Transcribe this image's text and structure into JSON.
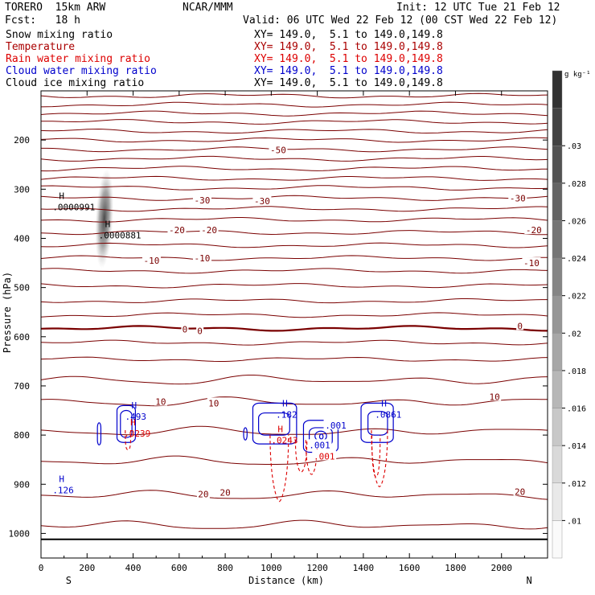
{
  "header": {
    "model": "TORERO",
    "resolution": "15km ARW",
    "org": "NCAR/MMM",
    "init": "Init: 12 UTC Tue 21 Feb 12",
    "fcst_label": "Fcst:",
    "fcst_value": "18 h",
    "valid": "Valid: 06 UTC Wed 22 Feb 12 (00 CST Wed 22 Feb 12)"
  },
  "fields": [
    {
      "name": "Snow mixing ratio",
      "xy": "XY= 149.0,  5.1 to 149.0,149.8",
      "color": "#000000"
    },
    {
      "name": "Temperature",
      "xy": "XY= 149.0,  5.1 to 149.0,149.8",
      "color": "#aa0000"
    },
    {
      "name": "Rain water mixing ratio",
      "xy": "XY= 149.0,  5.1 to 149.0,149.8",
      "color": "#dd0000"
    },
    {
      "name": "Cloud water mixing ratio",
      "xy": "XY= 149.0,  5.1 to 149.0,149.8",
      "color": "#0000cc"
    },
    {
      "name": "Cloud ice mixing ratio",
      "xy": "XY= 149.0,  5.1 to 149.0,149.8",
      "color": "#000000"
    }
  ],
  "chart_data": {
    "type": "contour",
    "xlabel": "Distance (km)",
    "ylabel": "Pressure (hPa)",
    "xlim": [
      0,
      2200
    ],
    "ylim": [
      1050,
      100
    ],
    "xticks": [
      0,
      200,
      400,
      600,
      800,
      1000,
      1200,
      1400,
      1600,
      1800,
      2000
    ],
    "yticks": [
      200,
      300,
      400,
      500,
      600,
      700,
      800,
      900,
      1000
    ],
    "x_end_labels": {
      "left": "S",
      "right": "N"
    },
    "colorbar": {
      "unit": "g kg⁻¹",
      "tick_labels": [
        ".01",
        ".012",
        ".014",
        ".016",
        ".018",
        ".02",
        ".022",
        ".024",
        ".026",
        ".028",
        ".03"
      ]
    },
    "temperature_contour_labels": [
      {
        "x": 1030,
        "p": 220,
        "text": "-50"
      },
      {
        "x": 700,
        "p": 322,
        "text": "-30"
      },
      {
        "x": 960,
        "p": 324,
        "text": "-30"
      },
      {
        "x": 2070,
        "p": 318,
        "text": "-30"
      },
      {
        "x": 590,
        "p": 383,
        "text": "-20"
      },
      {
        "x": 730,
        "p": 383,
        "text": "-20"
      },
      {
        "x": 2140,
        "p": 383,
        "text": "-20"
      },
      {
        "x": 480,
        "p": 445,
        "text": "-10"
      },
      {
        "x": 700,
        "p": 440,
        "text": "-10"
      },
      {
        "x": 2130,
        "p": 450,
        "text": "-10"
      },
      {
        "x": 625,
        "p": 585,
        "text": "0"
      },
      {
        "x": 690,
        "p": 588,
        "text": "0"
      },
      {
        "x": 2080,
        "p": 578,
        "text": "0"
      },
      {
        "x": 520,
        "p": 732,
        "text": "10"
      },
      {
        "x": 750,
        "p": 735,
        "text": "10"
      },
      {
        "x": 1970,
        "p": 722,
        "text": "10"
      },
      {
        "x": 705,
        "p": 920,
        "text": "20"
      },
      {
        "x": 800,
        "p": 917,
        "text": "20"
      },
      {
        "x": 2080,
        "p": 915,
        "text": "20"
      }
    ],
    "extrema_labels": [
      {
        "x": 50,
        "p": 330,
        "mark": "H",
        "value": ".0000991",
        "color": "#000000"
      },
      {
        "x": 250,
        "p": 387,
        "mark": "H",
        "value": ".0000881",
        "color": "#000000"
      },
      {
        "x": 360,
        "p": 790,
        "mark": "H",
        "value": ".0239",
        "color": "#dd0000"
      },
      {
        "x": 1000,
        "p": 804,
        "mark": "H",
        "value": ".0243",
        "color": "#dd0000"
      },
      {
        "x": 365,
        "p": 756,
        "mark": "H",
        "value": ".493",
        "color": "#0000cc"
      },
      {
        "x": 1020,
        "p": 752,
        "mark": "H",
        "value": ".182",
        "color": "#0000cc"
      },
      {
        "x": 1450,
        "p": 752,
        "mark": "H",
        "value": ".0861",
        "color": "#0000cc"
      },
      {
        "x": 50,
        "p": 905,
        "mark": "H",
        "value": ".126",
        "color": "#0000cc"
      }
    ],
    "cloud_water_labels": [
      {
        "x": 1280,
        "p": 780,
        "text": ".001"
      },
      {
        "x": 1210,
        "p": 820,
        "text": ".001"
      }
    ],
    "rain_water_labels": [
      {
        "x": 1230,
        "p": 843,
        "text": ".001"
      }
    ]
  }
}
